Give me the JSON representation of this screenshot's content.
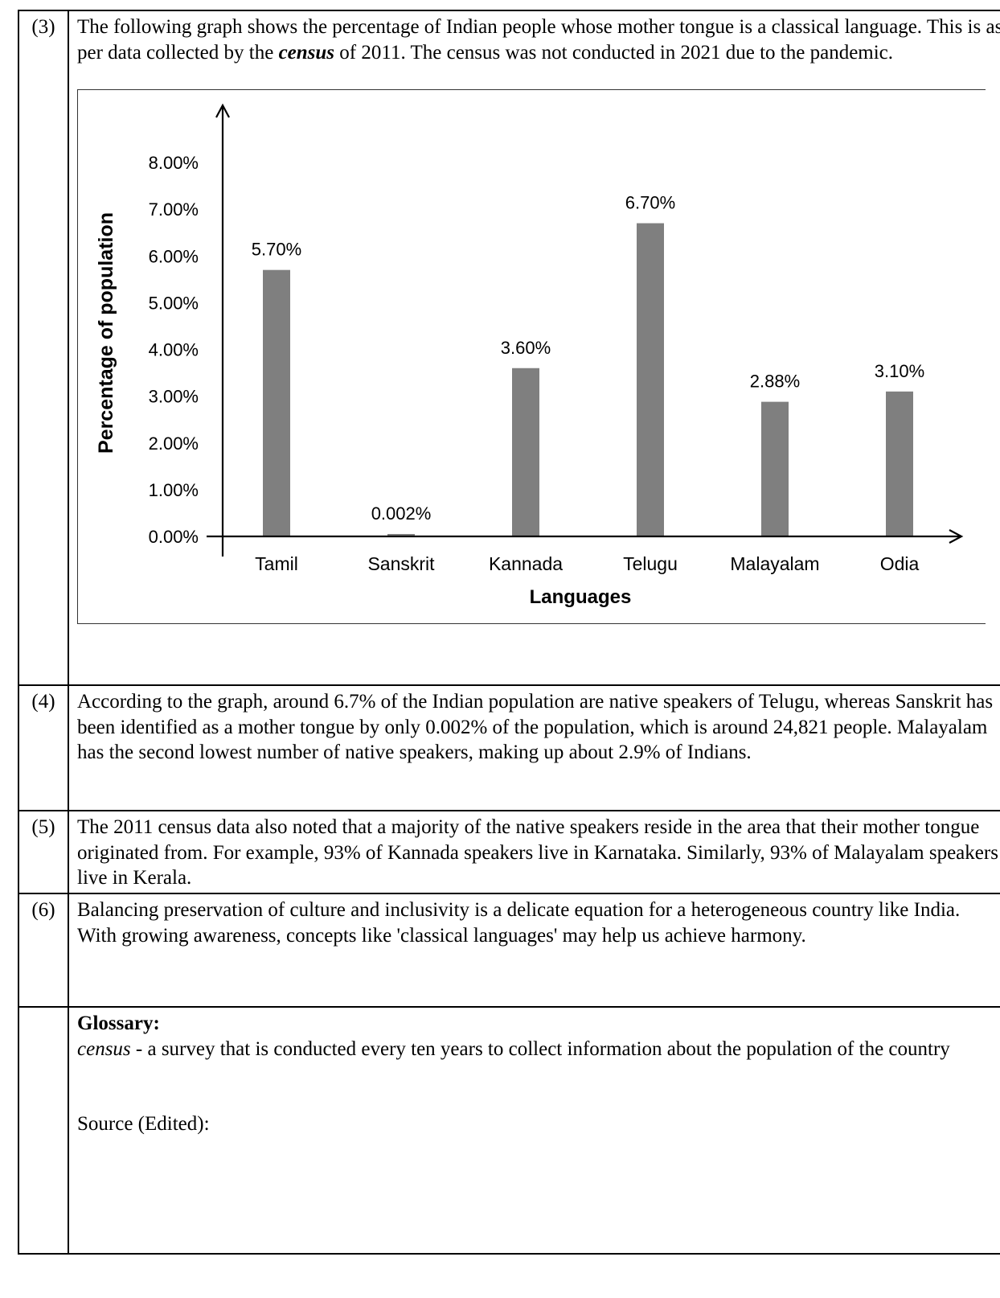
{
  "rows": [
    {
      "num": "(3)",
      "text_before": "The following graph shows the percentage of Indian people whose mother tongue is a classical language. This is as per data collected by the ",
      "text_emph": "census",
      "text_after": " of 2011. The census was not conducted in 2021 due to the pandemic."
    },
    {
      "num": "(4)",
      "text": "According to the graph, around 6.7% of the Indian population are native speakers of Telugu, whereas Sanskrit has been identified as a mother tongue by only 0.002% of the population, which is around 24,821 people. Malayalam has the second lowest number of native speakers, making up about 2.9% of Indians."
    },
    {
      "num": "(5)",
      "text": "The 2011 census data also noted that a majority of the native speakers reside in the area that their mother tongue originated from. For example, 93% of Kannada speakers live in Karnataka. Similarly, 93% of Malayalam speakers live in Kerala."
    },
    {
      "num": "(6)",
      "text": "Balancing preservation of culture and inclusivity is a delicate equation for a heterogeneous country like India. With growing awareness, concepts like 'classical languages' may help us achieve harmony."
    }
  ],
  "glossary": {
    "title": "Glossary:",
    "term": "census",
    "definition": " - a survey that is conducted every ten years to collect information about the population of the country",
    "source": "Source (Edited):"
  },
  "chart_data": {
    "type": "bar",
    "title": "",
    "xlabel": "Languages",
    "ylabel": "Percentage of population",
    "ylim": [
      0,
      8
    ],
    "yticks": [
      "0.00%",
      "1.00%",
      "2.00%",
      "3.00%",
      "4.00%",
      "5.00%",
      "6.00%",
      "7.00%",
      "8.00%"
    ],
    "categories": [
      "Tamil",
      "Sanskrit",
      "Kannada",
      "Telugu",
      "Malayalam",
      "Odia"
    ],
    "values": [
      5.7,
      0.002,
      3.6,
      6.7,
      2.88,
      3.1
    ],
    "data_labels": [
      "5.70%",
      "0.002%",
      "3.60%",
      "6.70%",
      "2.88%",
      "3.10%"
    ],
    "bar_color": "#7f7f7f",
    "grid": false,
    "legend": "none"
  }
}
